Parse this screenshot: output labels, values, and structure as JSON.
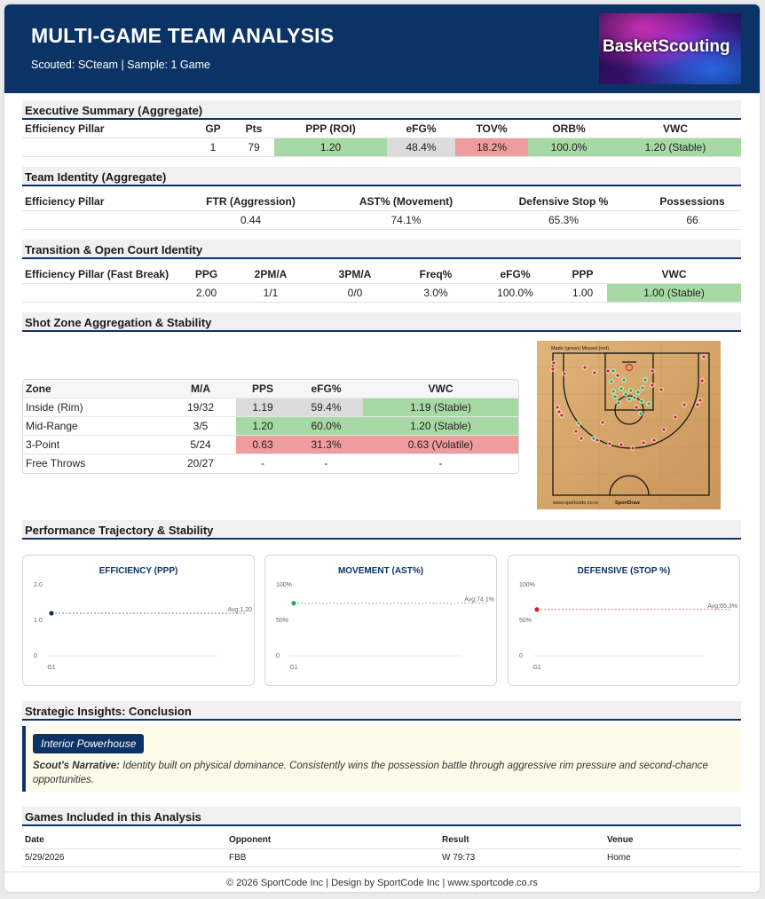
{
  "header": {
    "title": "MULTI-GAME TEAM ANALYSIS",
    "subtitle": "Scouted: SCteam | Sample: 1 Game",
    "logo_text": "BasketScouting"
  },
  "executive": {
    "title": "Executive Summary (Aggregate)",
    "headers": [
      "Efficiency Pillar",
      "GP",
      "Pts",
      "PPP (ROI)",
      "eFG%",
      "TOV%",
      "ORB%",
      "VWC"
    ],
    "values": [
      "",
      "1",
      "79",
      "1.20",
      "48.4%",
      "18.2%",
      "100.0%",
      "1.20 (Stable)"
    ]
  },
  "identity": {
    "title": "Team Identity (Aggregate)",
    "headers": [
      "Efficiency Pillar",
      "FTR (Aggression)",
      "AST% (Movement)",
      "Defensive Stop %",
      "Possessions"
    ],
    "values": [
      "",
      "0.44",
      "74.1%",
      "65.3%",
      "66"
    ]
  },
  "transition": {
    "title": "Transition & Open Court Identity",
    "headers": [
      "Efficiency Pillar (Fast Break)",
      "PPG",
      "2PM/A",
      "3PM/A",
      "Freq%",
      "eFG%",
      "PPP",
      "VWC"
    ],
    "values": [
      "",
      "2.00",
      "1/1",
      "0/0",
      "3.0%",
      "100.0%",
      "1.00",
      "1.00 (Stable)"
    ]
  },
  "shot_zones": {
    "title": "Shot Zone Aggregation & Stability",
    "headers": [
      "Zone",
      "M/A",
      "PPS",
      "eFG%",
      "VWC"
    ],
    "rows": [
      [
        "Inside (Rim)",
        "19/32",
        "1.19",
        "59.4%",
        "1.19 (Stable)"
      ],
      [
        "Mid-Range",
        "3/5",
        "1.20",
        "60.0%",
        "1.20 (Stable)"
      ],
      [
        "3-Point",
        "5/24",
        "0.63",
        "31.3%",
        "0.63 (Volatile)"
      ],
      [
        "Free Throws",
        "20/27",
        "-",
        "-",
        "-"
      ]
    ],
    "court": {
      "legend": "Made (green)   Missed (red)",
      "url_text": "www.sportcode.co.rs",
      "brand_text": "SportDraw"
    }
  },
  "trajectory": {
    "title": "Performance Trajectory & Stability",
    "charts": [
      {
        "title": "EFFICIENCY (PPP)",
        "y_top": "2.0",
        "y_mid": "1.0",
        "y_bottom": "0",
        "x_label": "G1",
        "avg_label": "Avg:1.20",
        "value": 1.2,
        "max": 2.0,
        "color": "#0c3366"
      },
      {
        "title": "MOVEMENT (AST%)",
        "y_top": "100%",
        "y_mid": "50%",
        "y_bottom": "0",
        "x_label": "G1",
        "avg_label": "Avg:74.1%",
        "value": 74.1,
        "max": 100,
        "color": "#2aa84a"
      },
      {
        "title": "DEFENSIVE (STOP %)",
        "y_top": "100%",
        "y_mid": "50%",
        "y_bottom": "0",
        "x_label": "G1",
        "avg_label": "Avg:65.3%",
        "value": 65.3,
        "max": 100,
        "color": "#d0282c"
      }
    ]
  },
  "insights": {
    "title": "Strategic Insights: Conclusion",
    "badge": "Interior Powerhouse",
    "narrative_label": "Scout's Narrative:",
    "narrative": " Identity built on physical dominance. Consistently wins the possession battle through aggressive rim pressure and second-chance opportunities."
  },
  "games": {
    "title": "Games Included in this Analysis",
    "headers": [
      "Date",
      "Opponent",
      "Result",
      "Venue"
    ],
    "rows": [
      [
        "5/29/2026",
        "FBB",
        "W 79:73",
        "Home"
      ]
    ]
  },
  "footer": "© 2026 SportCode Inc | Design by SportCode Inc | www.sportcode.co.rs",
  "colors": {
    "navy": "#0c3366",
    "good": "#a7d9a4",
    "bad": "#ef9c9c",
    "neutral": "#dcdcdc"
  }
}
